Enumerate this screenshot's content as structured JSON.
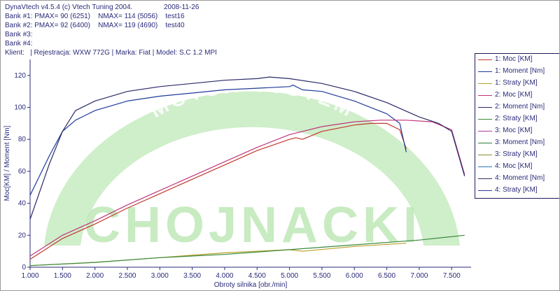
{
  "header": {
    "title": "DynaVtech v4.5.4 (c) Vtech Tuning 2004.",
    "date": "2008-11-26",
    "bank1": "Bank #1: PMAX= 90 (6251)    NMAX= 114 (5056)    test16",
    "bank2": "Bank #2: PMAX= 92 (6400)    NMAX= 119 (4690)    test40",
    "bank3": "Bank #3:",
    "bank4": "Bank #4:",
    "client": "Klient:   | Rejestracja: WXW 772G | Marka: Fiat | Model: S.C 1.2 MPI"
  },
  "watermark": {
    "text_main": "CHOJNACKI",
    "text_arc": "MOTOR-SYSTEM",
    "color": "#bfe8b8"
  },
  "legend": [
    {
      "label": "1: Moc [KM]",
      "color": "#c0392b"
    },
    {
      "label": "1: Moment [Nm]",
      "color": "#1f3a9a"
    },
    {
      "label": "1: Straty [KM]",
      "color": "#b8a02a"
    },
    {
      "label": "2: Moc [KM]",
      "color": "#c0357a"
    },
    {
      "label": "2: Moment [Nm]",
      "color": "#2a2a6a"
    },
    {
      "label": "2: Straty [KM]",
      "color": "#3a8a3a"
    },
    {
      "label": "3: Moc [KM]",
      "color": "#b03aa0"
    },
    {
      "label": "3: Moment [Nm]",
      "color": "#2e7d3a"
    },
    {
      "label": "3: Straty [KM]",
      "color": "#8a8a2a"
    },
    {
      "label": "4: Moc [KM]",
      "color": "#2a7ab0"
    },
    {
      "label": "4: Moment [Nm]",
      "color": "#3a2a6a"
    },
    {
      "label": "4: Straty [KM]",
      "color": "#2a3a9a"
    }
  ],
  "chart_data": {
    "type": "line",
    "xlabel": "Obroty silnika [obr./min]",
    "ylabel": "Moc[KM] / Moment [Nm]",
    "xlim": [
      1000,
      7800
    ],
    "ylim": [
      0,
      130
    ],
    "x_ticks": [
      1000,
      1500,
      2000,
      2500,
      3000,
      3500,
      4000,
      4500,
      5000,
      5500,
      6000,
      6500,
      7000,
      7500
    ],
    "x_tick_labels": [
      "1.000",
      "1.500",
      "2.000",
      "2.500",
      "3.000",
      "3.500",
      "4.000",
      "4.500",
      "5.000",
      "5.500",
      "6.000",
      "6.500",
      "7.000",
      "7.500"
    ],
    "y_ticks": [
      0,
      20,
      40,
      60,
      80,
      100,
      120
    ],
    "grid": false,
    "series": [
      {
        "name": "1: Moc [KM]",
        "color": "#c0392b",
        "x": [
          1000,
          1500,
          2000,
          2500,
          3000,
          3500,
          4000,
          4500,
          5000,
          5100,
          5200,
          5500,
          6000,
          6251,
          6500,
          6700,
          6800
        ],
        "y": [
          5,
          18,
          27,
          37,
          46,
          55,
          64,
          73,
          80,
          81,
          80,
          85,
          89,
          90,
          90,
          86,
          74
        ]
      },
      {
        "name": "1: Moment [Nm]",
        "color": "#1f3a9a",
        "x": [
          1000,
          1300,
          1500,
          1700,
          2000,
          2500,
          3000,
          3500,
          4000,
          4500,
          5000,
          5056,
          5100,
          5200,
          5500,
          6000,
          6500,
          6700,
          6800
        ],
        "y": [
          45,
          70,
          85,
          92,
          98,
          104,
          107,
          109,
          111,
          112,
          113,
          114,
          113,
          111,
          110,
          104,
          96,
          90,
          72
        ]
      },
      {
        "name": "1: Straty [KM]",
        "color": "#b8a02a",
        "x": [
          1000,
          2000,
          3000,
          4000,
          5000,
          5200,
          6000,
          6800
        ],
        "y": [
          1,
          3,
          6,
          9,
          11,
          10,
          13,
          15
        ]
      },
      {
        "name": "2: Moc [KM]",
        "color": "#c0357a",
        "x": [
          1000,
          1500,
          2000,
          2500,
          3000,
          3500,
          4000,
          4500,
          5000,
          5500,
          6000,
          6400,
          6800,
          7200,
          7500,
          7700
        ],
        "y": [
          7,
          20,
          29,
          39,
          48,
          57,
          66,
          75,
          83,
          88,
          91,
          92,
          92,
          91,
          86,
          58
        ]
      },
      {
        "name": "2: Moment [Nm]",
        "color": "#2a2a6a",
        "x": [
          1000,
          1300,
          1500,
          1700,
          2000,
          2500,
          3000,
          3500,
          4000,
          4500,
          4690,
          5000,
          5500,
          6000,
          6500,
          7000,
          7300,
          7500,
          7700
        ],
        "y": [
          30,
          65,
          85,
          98,
          104,
          110,
          113,
          115,
          117,
          118,
          119,
          118,
          115,
          110,
          103,
          94,
          90,
          85,
          57
        ]
      },
      {
        "name": "2: Straty [KM]",
        "color": "#3a8a3a",
        "x": [
          1000,
          2000,
          3000,
          4000,
          5000,
          6000,
          7000,
          7700
        ],
        "y": [
          1,
          3,
          6,
          8,
          11,
          14,
          17,
          20
        ]
      }
    ]
  }
}
